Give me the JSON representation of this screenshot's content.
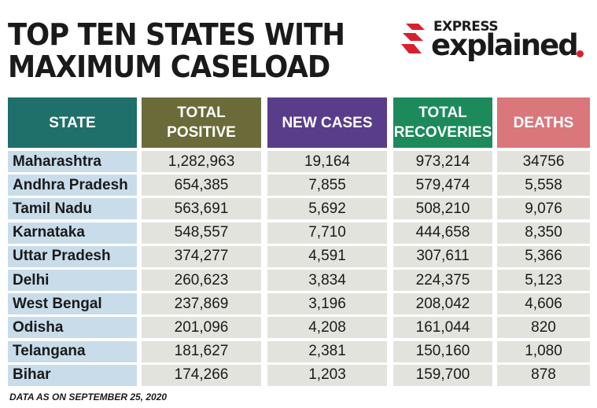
{
  "title": {
    "line1": "TOP TEN STATES WITH",
    "line2": "MAXIMUM CASELOAD"
  },
  "logo": {
    "small": "EXPRESS",
    "large": "explained",
    "accent_color": "#d8202d"
  },
  "colors": {
    "state_header": "#1f6f6b",
    "positive_header": "#6b6b3a",
    "new_cases_header": "#5a3d8a",
    "recoveries_header": "#1c8a5a",
    "deaths_header": "#d9777a",
    "state_cell": "#c9dcea",
    "data_cell": "#e3e3de"
  },
  "table": {
    "headers": [
      "STATE",
      "TOTAL\nPOSITIVE",
      "NEW CASES",
      "TOTAL\nRECOVERIES",
      "DEATHS"
    ],
    "rows": [
      [
        "Maharashtra",
        "1,282,963",
        "19,164",
        "973,214",
        "34756"
      ],
      [
        "Andhra Pradesh",
        "654,385",
        "7,855",
        "579,474",
        "5,558"
      ],
      [
        "Tamil Nadu",
        "563,691",
        "5,692",
        "508,210",
        "9,076"
      ],
      [
        "Karnataka",
        "548,557",
        "7,710",
        "444,658",
        "8,350"
      ],
      [
        "Uttar Pradesh",
        "374,277",
        "4,591",
        "307,611",
        "5,366"
      ],
      [
        "Delhi",
        "260,623",
        "3,834",
        "224,375",
        "5,123"
      ],
      [
        "West Bengal",
        "237,869",
        "3,196",
        "208,042",
        "4,606"
      ],
      [
        "Odisha",
        "201,096",
        "4,208",
        "161,044",
        "820"
      ],
      [
        "Telangana",
        "181,627",
        "2,381",
        "150,160",
        "1,080"
      ],
      [
        "Bihar",
        "174,266",
        "1,203",
        "159,700",
        "878"
      ]
    ]
  },
  "footnote": "DATA AS ON SEPTEMBER 25, 2020"
}
